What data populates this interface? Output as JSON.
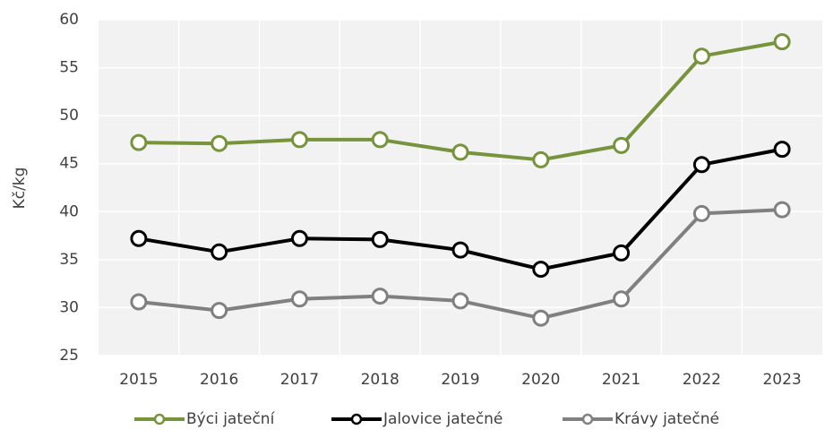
{
  "chart_data": {
    "type": "line",
    "y_label": "Kč/kg",
    "categories": [
      "2015",
      "2016",
      "2017",
      "2018",
      "2019",
      "2020",
      "2021",
      "2022",
      "2023"
    ],
    "series": [
      {
        "name": "Býci jateční",
        "color": "#77933c",
        "values": [
          47.2,
          47.1,
          47.5,
          47.5,
          46.2,
          45.4,
          46.9,
          56.2,
          57.7
        ]
      },
      {
        "name": "Jalovice jatečné",
        "color": "#000000",
        "values": [
          37.2,
          35.8,
          37.2,
          37.1,
          36.0,
          34.0,
          35.7,
          44.9,
          46.5
        ]
      },
      {
        "name": "Krávy jatečné",
        "color": "#808080",
        "values": [
          30.6,
          29.7,
          30.9,
          31.2,
          30.7,
          28.9,
          30.9,
          39.8,
          40.2
        ]
      }
    ],
    "ylim": [
      25,
      60
    ],
    "yticks": [
      25,
      30,
      35,
      40,
      45,
      50,
      55,
      60
    ],
    "grid": true,
    "legend": "bottom",
    "plot_background": "#f2f2f2"
  }
}
